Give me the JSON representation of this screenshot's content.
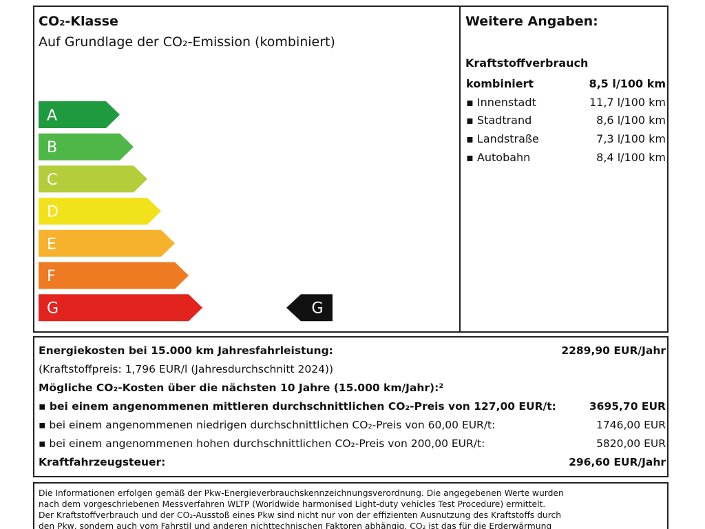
{
  "header": {
    "title": "CO₂-Klasse",
    "subtitle": "Auf Grundlage der CO₂-Emission (kombiniert)"
  },
  "classes": [
    {
      "label": "A",
      "color": "#1f9a3f"
    },
    {
      "label": "B",
      "color": "#4fb648"
    },
    {
      "label": "C",
      "color": "#b4cd3b"
    },
    {
      "label": "D",
      "color": "#f2e21c"
    },
    {
      "label": "E",
      "color": "#f6b12d"
    },
    {
      "label": "F",
      "color": "#ee7a21"
    },
    {
      "label": "G",
      "color": "#e2231e"
    }
  ],
  "indicator": "G",
  "details": {
    "title": "Weitere Angaben:",
    "section": "Kraftstoffverbrauch",
    "rows": [
      {
        "label": "kombiniert",
        "value": "8,5 l/100 km"
      },
      {
        "label": "▪ Innenstadt",
        "value": "11,7 l/100 km"
      },
      {
        "label": "▪ Stadtrand",
        "value": "8,6 l/100 km"
      },
      {
        "label": "▪ Landstraße",
        "value": "7,3 l/100 km"
      },
      {
        "label": "▪ Autobahn",
        "value": "8,4 l/100 km"
      }
    ]
  },
  "costs": [
    {
      "label": "Energiekosten bei 15.000 km Jahresfahrleistung:",
      "value": "2289,90 EUR/Jahr"
    },
    {
      "label": "(Kraftstoffpreis: 1,796 EUR/l (Jahresdurchschnitt 2024))"
    },
    {
      "label": "Mögliche CO₂-Kosten über die nächsten 10 Jahre (15.000 km/Jahr):²"
    },
    {
      "label": "▪ bei einem angenommenen mittleren durchschnittlichen CO₂-Preis von 127,00 EUR/t:",
      "value": "3695,70 EUR"
    },
    {
      "label": "▪ bei einem angenommenen niedrigen durchschnittlichen CO₂-Preis von 60,00 EUR/t:",
      "value": "1746,00 EUR"
    },
    {
      "label": "▪ bei einem angenommenen hohen durchschnittlichen CO₂-Preis von 200,00 EUR/t:",
      "value": "5820,00 EUR"
    },
    {
      "label": "Kraftfahrzeugsteuer:",
      "value": "296,60 EUR/Jahr"
    }
  ],
  "footer": [
    "Die Informationen erfolgen gemäß der Pkw-Energieverbrauchskennzeichnungsverordnung. Die angegebenen Werte wurden",
    "nach dem vorgeschriebenen Messverfahren WLTP (Worldwide harmonised Light-duty vehicles Test Procedure) ermittelt.",
    "Der Kraftstoffverbrauch und der CO₂-Ausstoß eines Pkw sind nicht nur von der effizienten Ausnutzung des Kraftstoffs durch",
    "den Pkw, sondern auch vom Fahrstil und anderen nichttechnischen Faktoren abhängig. CO₂ ist das für die Erderwärmung"
  ]
}
